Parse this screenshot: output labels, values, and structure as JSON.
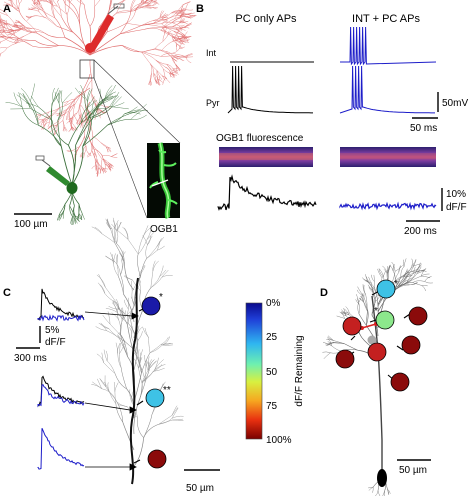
{
  "panels": {
    "A": {
      "letter": "A",
      "scalebar_label": "100 µm",
      "inset_label": "OGB1"
    },
    "B": {
      "letter": "B",
      "col1_title": "PC only APs",
      "col2_title": "INT + PC APs",
      "trace_labels": {
        "int": "Int",
        "pyr": "Pyr"
      },
      "voltage_scale": "50mV",
      "time_scale_top": "50 ms",
      "fluorescence_title": "OGB1 fluorescence",
      "dff_scale_value": "10%",
      "dff_scale_unit": "dF/F",
      "time_scale_bottom": "200 ms"
    },
    "C": {
      "letter": "C",
      "dff_scale_value": "5%",
      "dff_scale_unit": "dF/F",
      "time_scale": "300 ms",
      "scalebar_label": "50 µm",
      "markers": {
        "star1": "*",
        "star2": "**"
      },
      "colorbar": {
        "title": "dF/F Remaining",
        "ticks": [
          "0%",
          "25",
          "50",
          "75",
          "100%"
        ]
      }
    },
    "D": {
      "letter": "D",
      "scalebar_label": "50 µm",
      "markers": {
        "star1": "*",
        "star2": "*"
      }
    }
  },
  "colors": {
    "pc_trace": "#000000",
    "int_trace": "#1d1dc9",
    "pyramidal_tree_A": "#e06d6d",
    "int_tree_A": "#3a6e3a",
    "electrode_red": "#dd2b2b",
    "electrode_green": "#2f8a2f",
    "spine_high": "#8b0b0b",
    "spine_mid": "#c42020",
    "spine_low_blue": "#1a1aa8",
    "spine_cyan": "#3ec2e6",
    "spine_green": "#8ce88c"
  }
}
